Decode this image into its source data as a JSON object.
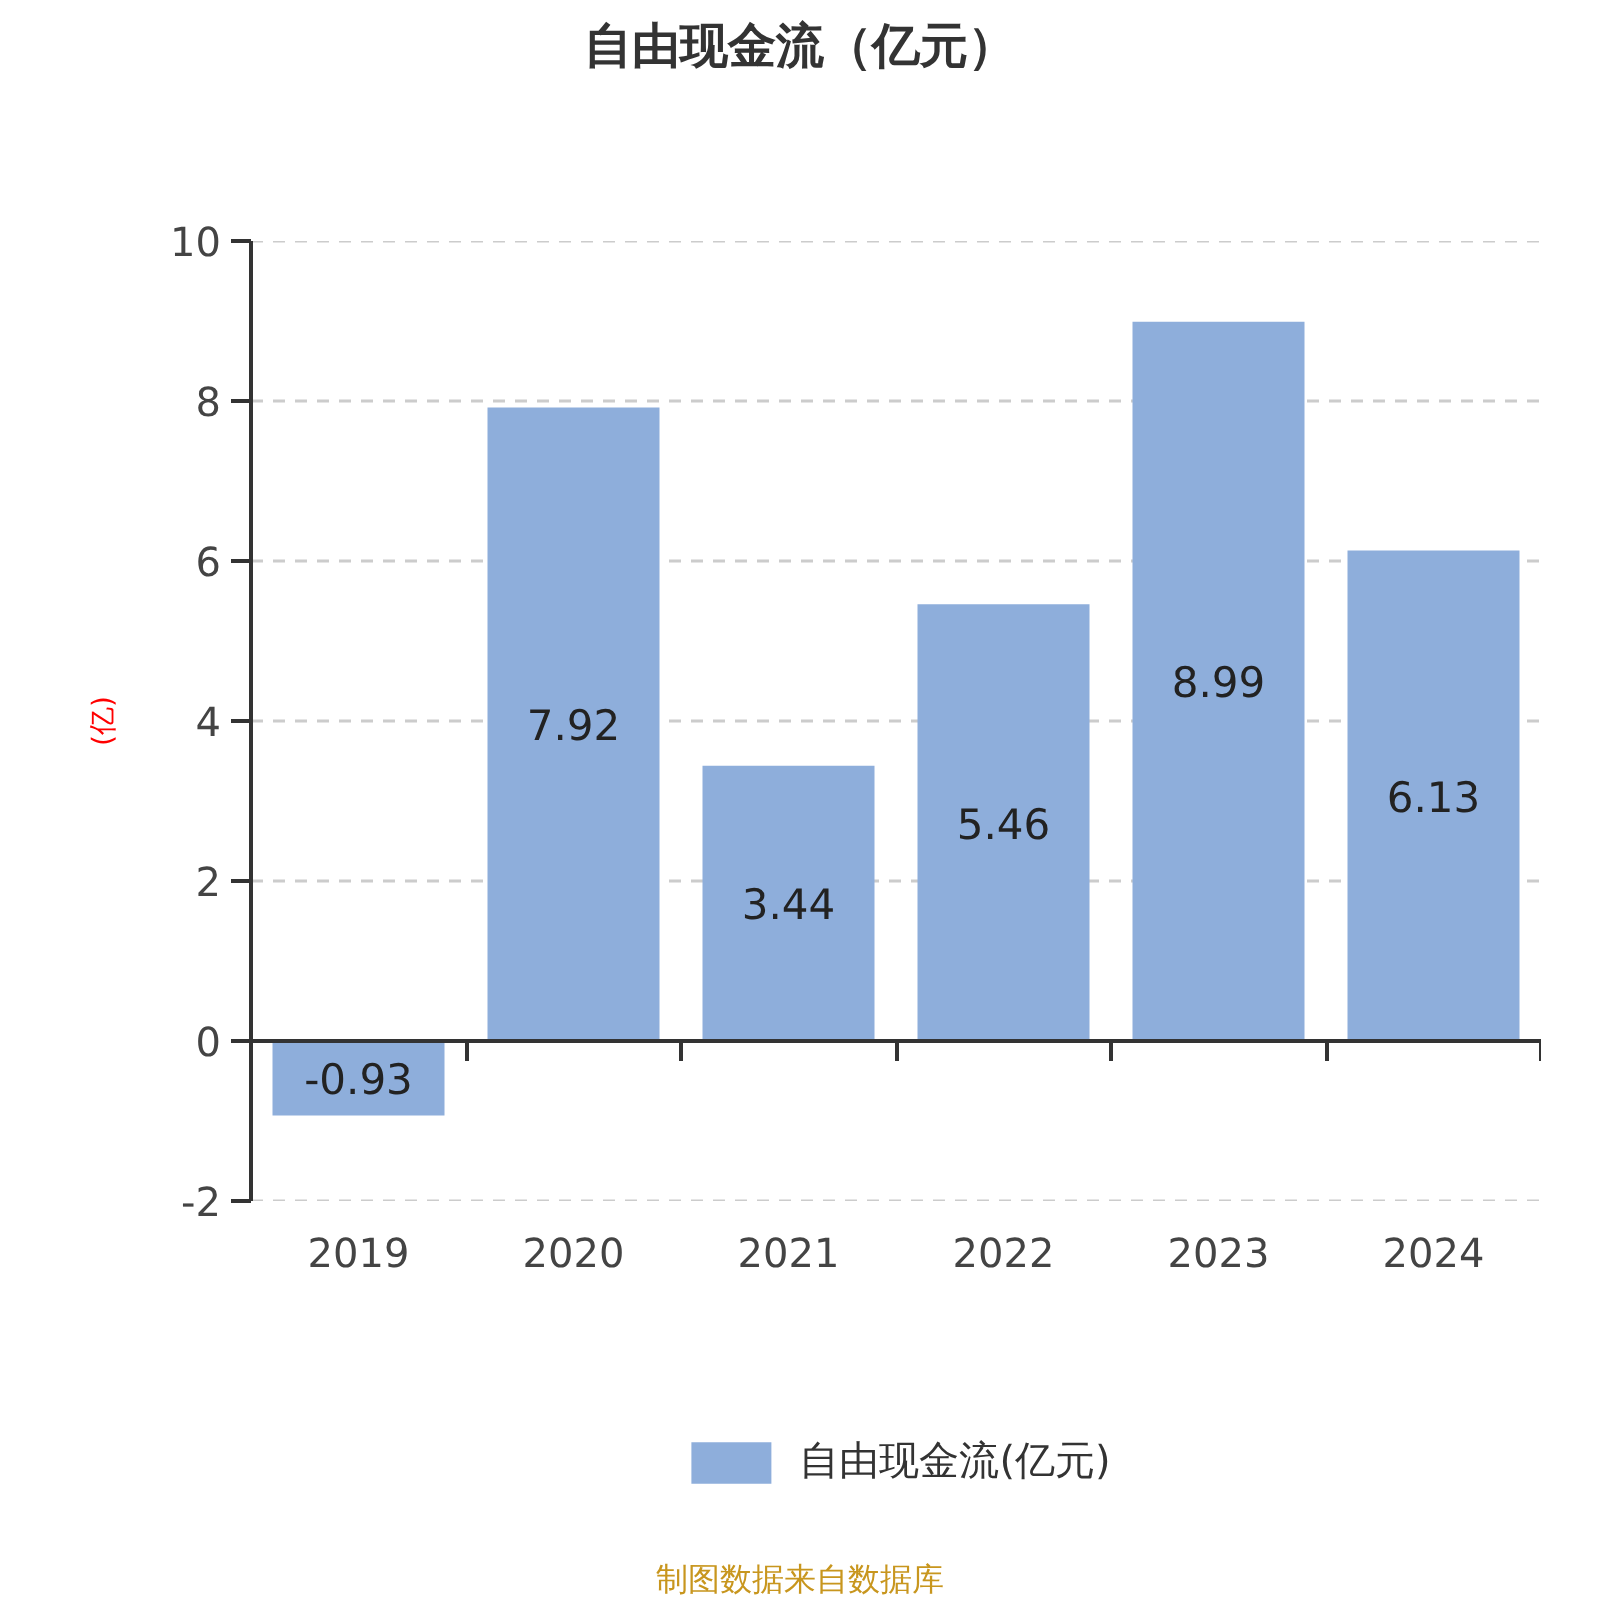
{
  "chart_data": {
    "type": "bar",
    "title": "自由现金流（亿元）",
    "ylabel": "(亿)",
    "categories": [
      "2019",
      "2020",
      "2021",
      "2022",
      "2023",
      "2024"
    ],
    "series": [
      {
        "name": "自由现金流(亿元)",
        "color": "#8eaedb",
        "values": [
          -0.93,
          7.92,
          3.44,
          5.46,
          8.99,
          6.13
        ]
      }
    ],
    "ylim": [
      -2,
      10
    ],
    "yticks": [
      -2,
      0,
      2,
      4,
      6,
      8,
      10
    ],
    "grid": "y",
    "data_labels": true,
    "legend": "bottom",
    "annotations": [
      "制图数据来自数据库"
    ]
  }
}
